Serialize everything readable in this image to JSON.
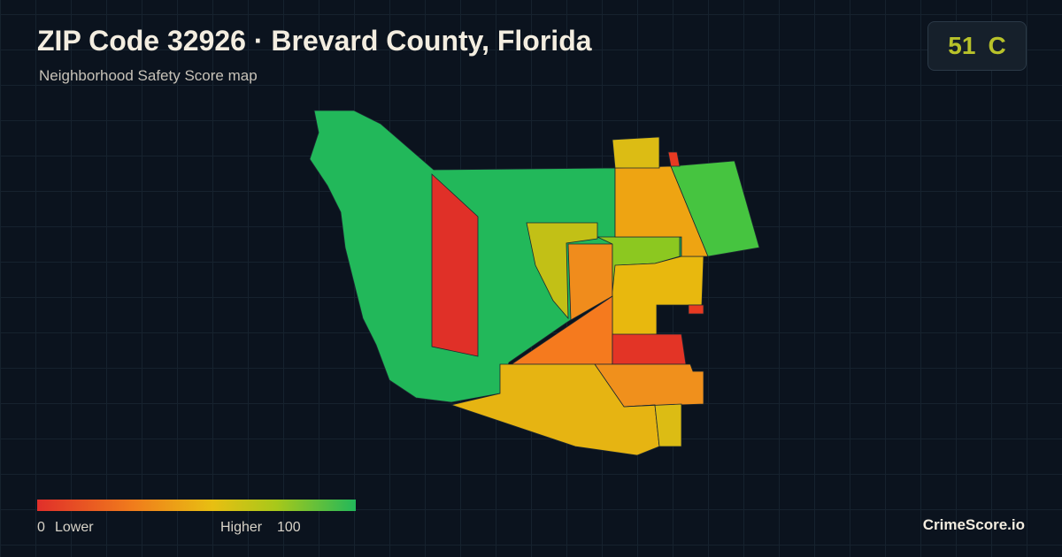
{
  "header": {
    "title": "ZIP Code 32926 · Brevard County, Florida",
    "subtitle": "Neighborhood Safety Score map"
  },
  "score": {
    "value": "51",
    "grade": "C"
  },
  "legend": {
    "min": "0",
    "min_label": "Lower",
    "max_label": "Higher",
    "max": "100"
  },
  "brand": "CrimeScore.io"
}
